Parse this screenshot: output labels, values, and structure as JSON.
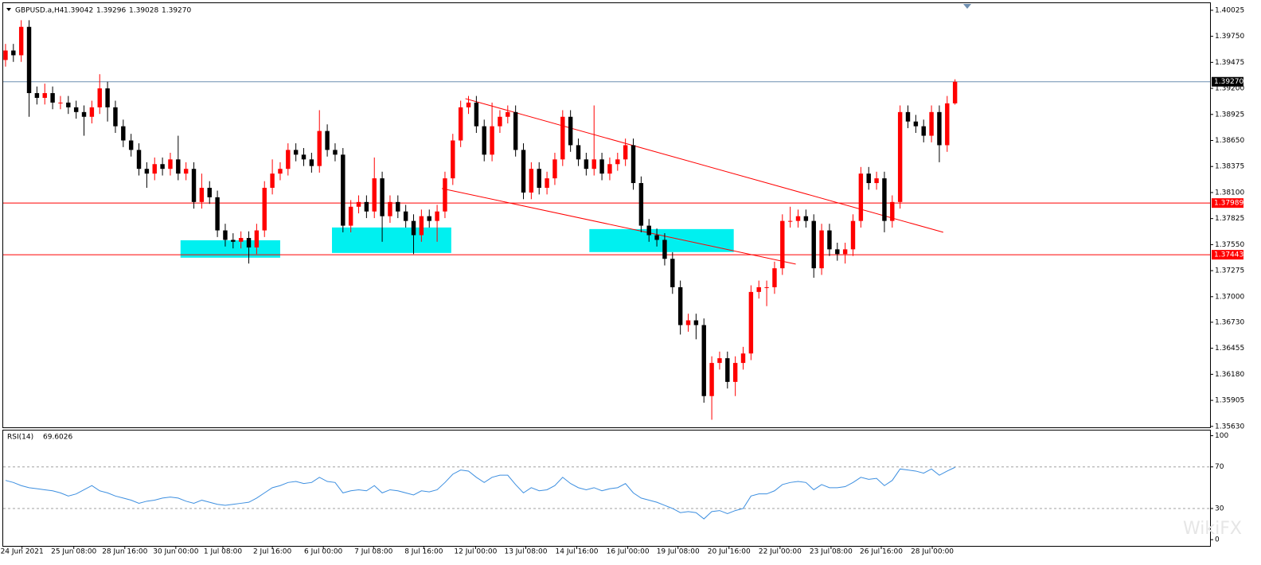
{
  "chart_data": {
    "type": "candlestick",
    "title": "GBPUSD.a,H4",
    "quote": [
      "1.39042",
      "1.39296",
      "1.39028",
      "1.39270"
    ],
    "bull_color": "#ff0000",
    "bear_color": "#000000",
    "xlim": [
      -0.3,
      153.5
    ],
    "xticks": [
      {
        "value": 2.1,
        "label": "24 Jun 2021"
      },
      {
        "value": 8.7,
        "label": "25 Jun 08:00"
      },
      {
        "value": 15.2,
        "label": "28 Jun 16:00"
      },
      {
        "value": 21.7,
        "label": "30 Jun 00:00"
      },
      {
        "value": 27.7,
        "label": "1 Jul 08:00"
      },
      {
        "value": 34.0,
        "label": "2 Jul 16:00"
      },
      {
        "value": 40.5,
        "label": "6 Jul 00:00"
      },
      {
        "value": 46.9,
        "label": "7 Jul 08:00"
      },
      {
        "value": 53.3,
        "label": "8 Jul 16:00"
      },
      {
        "value": 59.9,
        "label": "12 Jul 00:00"
      },
      {
        "value": 66.3,
        "label": "13 Jul 08:00"
      },
      {
        "value": 72.8,
        "label": "14 Jul 16:00"
      },
      {
        "value": 79.3,
        "label": "16 Jul 00:00"
      },
      {
        "value": 85.7,
        "label": "19 Jul 08:00"
      },
      {
        "value": 92.2,
        "label": "20 Jul 16:00"
      },
      {
        "value": 98.7,
        "label": "22 Jul 00:00"
      },
      {
        "value": 105.2,
        "label": "23 Jul 08:00"
      },
      {
        "value": 111.6,
        "label": "26 Jul 16:00"
      },
      {
        "value": 118.1,
        "label": "28 Jul 00:00"
      }
    ],
    "ylim": [
      1.3562,
      1.401
    ],
    "yticks": [
      1.40025,
      {
        "value": 1.3975,
        "label": "1.39750"
      },
      1.39475,
      {
        "value": 1.392,
        "label": "1.39200"
      },
      1.38925,
      {
        "value": 1.3865,
        "label": "1.38650"
      },
      1.38375,
      {
        "value": 1.381,
        "label": "1.38100"
      },
      1.37825,
      {
        "value": 1.3755,
        "label": "1.37550"
      },
      1.37275,
      {
        "value": 1.37,
        "label": "1.37000"
      },
      {
        "value": 1.3673,
        "label": "1.36730"
      },
      1.36455,
      {
        "value": 1.3618,
        "label": "1.36180"
      },
      1.35905,
      {
        "value": 1.3563,
        "label": "1.35630"
      }
    ],
    "open": [
      1.395,
      1.396,
      1.3955,
      1.3985,
      1.3915,
      1.391,
      1.3915,
      1.3905,
      1.3905,
      1.39,
      1.3895,
      1.389,
      1.39,
      1.392,
      1.39,
      1.388,
      1.3865,
      1.3855,
      1.3835,
      1.383,
      1.384,
      1.3835,
      1.3845,
      1.383,
      1.3835,
      1.38,
      1.3815,
      1.3805,
      1.377,
      1.376,
      1.3758,
      1.3762,
      1.3752,
      1.377,
      1.3815,
      1.383,
      1.3835,
      1.3855,
      1.385,
      1.3845,
      1.3838,
      1.3875,
      1.3855,
      1.385,
      1.3775,
      1.3795,
      1.38,
      1.379,
      1.3825,
      1.3785,
      1.38,
      1.379,
      1.378,
      1.3765,
      1.3785,
      1.378,
      1.379,
      1.3825,
      1.3865,
      1.39,
      1.3905,
      1.388,
      1.385,
      1.388,
      1.389,
      1.3895,
      1.3855,
      1.381,
      1.3835,
      1.3815,
      1.3825,
      1.3845,
      1.389,
      1.386,
      1.3845,
      1.3835,
      1.3845,
      1.383,
      1.384,
      1.3845,
      1.386,
      1.382,
      1.3775,
      1.3765,
      1.376,
      1.374,
      1.371,
      1.367,
      1.3675,
      1.367,
      1.3595,
      1.363,
      1.3635,
      1.361,
      1.363,
      1.364,
      1.3705,
      1.371,
      1.371,
      1.373,
      1.378,
      1.378,
      1.3785,
      1.378,
      1.373,
      1.377,
      1.375,
      1.3745,
      1.375,
      1.378,
      1.383,
      1.382,
      1.3825,
      1.378,
      1.38,
      1.3895,
      1.3885,
      1.388,
      1.387,
      1.3895,
      1.386,
      1.39042
    ],
    "high": [
      1.3967,
      1.3967,
      1.3992,
      1.3992,
      1.3922,
      1.3925,
      1.3922,
      1.3912,
      1.3912,
      1.3907,
      1.3902,
      1.3907,
      1.3935,
      1.3927,
      1.3907,
      1.3887,
      1.3872,
      1.3862,
      1.3842,
      1.3847,
      1.3847,
      1.3852,
      1.387,
      1.3842,
      1.3842,
      1.383,
      1.3822,
      1.3812,
      1.3777,
      1.3767,
      1.3769,
      1.3769,
      1.3777,
      1.3822,
      1.3845,
      1.3842,
      1.3862,
      1.3862,
      1.3857,
      1.3852,
      1.3897,
      1.3882,
      1.3862,
      1.3857,
      1.3802,
      1.3807,
      1.3807,
      1.3847,
      1.3832,
      1.3807,
      1.3807,
      1.3797,
      1.3787,
      1.3792,
      1.3792,
      1.3797,
      1.3832,
      1.3872,
      1.3907,
      1.3912,
      1.3912,
      1.3887,
      1.3905,
      1.3897,
      1.3902,
      1.3902,
      1.3862,
      1.3842,
      1.3842,
      1.3832,
      1.3852,
      1.3897,
      1.3897,
      1.3867,
      1.3852,
      1.3902,
      1.3852,
      1.3847,
      1.3852,
      1.3867,
      1.3867,
      1.3827,
      1.3782,
      1.3772,
      1.3767,
      1.3747,
      1.3717,
      1.3682,
      1.3682,
      1.3677,
      1.3637,
      1.3642,
      1.3642,
      1.3637,
      1.3647,
      1.3712,
      1.3717,
      1.3717,
      1.3737,
      1.3787,
      1.3795,
      1.3792,
      1.3792,
      1.3787,
      1.3777,
      1.3777,
      1.3757,
      1.3757,
      1.3787,
      1.3837,
      1.3837,
      1.3832,
      1.3832,
      1.3807,
      1.3902,
      1.3902,
      1.3892,
      1.3887,
      1.3902,
      1.3902,
      1.3912,
      1.39296
    ],
    "low": [
      1.3943,
      1.3948,
      1.3948,
      1.389,
      1.3903,
      1.3903,
      1.3898,
      1.3898,
      1.3893,
      1.3888,
      1.387,
      1.3883,
      1.3893,
      1.3885,
      1.3873,
      1.3858,
      1.3848,
      1.3828,
      1.3815,
      1.3823,
      1.3828,
      1.3828,
      1.3823,
      1.3823,
      1.3793,
      1.3793,
      1.3798,
      1.3763,
      1.3753,
      1.3751,
      1.3751,
      1.3735,
      1.3745,
      1.3763,
      1.3808,
      1.3823,
      1.3828,
      1.3843,
      1.3838,
      1.3831,
      1.3831,
      1.3848,
      1.3843,
      1.3768,
      1.3768,
      1.3788,
      1.3783,
      1.3783,
      1.3758,
      1.3778,
      1.3783,
      1.3773,
      1.3745,
      1.3758,
      1.3773,
      1.3758,
      1.3783,
      1.3818,
      1.3858,
      1.3893,
      1.3873,
      1.3843,
      1.3843,
      1.3873,
      1.3883,
      1.3848,
      1.3803,
      1.3803,
      1.3808,
      1.3808,
      1.3818,
      1.3838,
      1.3853,
      1.3838,
      1.3828,
      1.3828,
      1.3823,
      1.3823,
      1.3833,
      1.3838,
      1.3813,
      1.3768,
      1.3758,
      1.3753,
      1.3733,
      1.3703,
      1.366,
      1.3663,
      1.3655,
      1.3588,
      1.357,
      1.3623,
      1.3603,
      1.3595,
      1.3623,
      1.3633,
      1.3698,
      1.369,
      1.3703,
      1.3723,
      1.3773,
      1.3773,
      1.3773,
      1.372,
      1.3723,
      1.3743,
      1.3738,
      1.3735,
      1.3743,
      1.3773,
      1.3813,
      1.3813,
      1.3768,
      1.3773,
      1.3793,
      1.3878,
      1.3873,
      1.3863,
      1.3863,
      1.3842,
      1.3853,
      1.39028
    ],
    "close": [
      1.396,
      1.3955,
      1.3985,
      1.3915,
      1.391,
      1.3915,
      1.3905,
      1.3905,
      1.39,
      1.3895,
      1.389,
      1.39,
      1.392,
      1.39,
      1.388,
      1.3865,
      1.3855,
      1.3835,
      1.383,
      1.384,
      1.3835,
      1.3845,
      1.383,
      1.3835,
      1.38,
      1.3815,
      1.3805,
      1.377,
      1.376,
      1.3758,
      1.3762,
      1.3752,
      1.377,
      1.3815,
      1.383,
      1.3835,
      1.3855,
      1.385,
      1.3845,
      1.3838,
      1.3875,
      1.3855,
      1.385,
      1.3775,
      1.3795,
      1.38,
      1.379,
      1.3825,
      1.3785,
      1.38,
      1.379,
      1.378,
      1.3765,
      1.3785,
      1.378,
      1.379,
      1.3825,
      1.3865,
      1.39,
      1.3905,
      1.388,
      1.385,
      1.388,
      1.389,
      1.3895,
      1.3855,
      1.381,
      1.3835,
      1.3815,
      1.3825,
      1.3845,
      1.389,
      1.386,
      1.3845,
      1.3835,
      1.3845,
      1.383,
      1.384,
      1.3845,
      1.386,
      1.382,
      1.3775,
      1.3765,
      1.376,
      1.374,
      1.371,
      1.367,
      1.3675,
      1.367,
      1.3595,
      1.363,
      1.3635,
      1.361,
      1.363,
      1.364,
      1.3705,
      1.371,
      1.371,
      1.373,
      1.378,
      1.378,
      1.3785,
      1.378,
      1.373,
      1.377,
      1.375,
      1.3745,
      1.375,
      1.378,
      1.383,
      1.382,
      1.3825,
      1.378,
      1.38,
      1.3895,
      1.3885,
      1.388,
      1.387,
      1.3895,
      1.386,
      1.39042,
      1.3927
    ],
    "hlines": [
      {
        "value": 1.3927,
        "label": "1.39270",
        "color": "#6f8fb0",
        "tag_color": "#000000"
      },
      {
        "value": 1.37989,
        "label": "1.37989",
        "color": "#ff0000",
        "tag_color": "#ff0000"
      },
      {
        "value": 1.37443,
        "label": "1.37443",
        "color": "#ff0000",
        "tag_color": "#ff0000"
      }
    ],
    "trendlines": [
      {
        "x": [
          58.6,
          119.5
        ],
        "y": [
          1.39092,
          1.3768
        ],
        "color": "#ff0000"
      },
      {
        "x": [
          55.6,
          100.7
        ],
        "y": [
          1.38143,
          1.37344
        ],
        "color": "#ff0000"
      }
    ],
    "zones": [
      {
        "x": [
          22.3,
          35.0
        ],
        "y": [
          1.37412,
          1.37596
        ],
        "color": "#00f0f0"
      },
      {
        "x": [
          41.6,
          56.8
        ],
        "y": [
          1.37462,
          1.37731
        ],
        "color": "#00f0f0"
      },
      {
        "x": [
          74.4,
          92.8
        ],
        "y": [
          1.37471,
          1.37714
        ],
        "color": "#00f0f0"
      }
    ],
    "rsi": {
      "name": "RSI(14)",
      "color": "#3d8fe0",
      "ylim": [
        -6,
        105
      ],
      "yticks": [
        100,
        70,
        30,
        0
      ],
      "levels": [
        70,
        30
      ],
      "values": [
        57,
        55,
        52,
        50,
        49,
        48,
        47,
        45,
        42,
        44,
        48,
        52,
        47,
        45,
        42,
        40,
        38,
        35,
        37,
        38,
        40,
        41,
        40,
        37,
        35,
        38,
        36,
        34,
        33,
        34,
        35,
        36,
        40,
        45,
        50,
        52,
        55,
        56,
        54,
        55,
        60,
        56,
        55,
        45,
        47,
        48,
        47,
        52,
        45,
        48,
        47,
        45,
        43,
        47,
        46,
        48,
        55,
        63,
        67,
        66,
        60,
        55,
        60,
        62,
        62,
        53,
        45,
        50,
        47,
        48,
        52,
        60,
        54,
        50,
        48,
        50,
        47,
        49,
        50,
        54,
        45,
        40,
        38,
        36,
        33,
        30,
        26,
        27,
        26,
        20,
        27,
        28,
        25,
        28,
        30,
        42,
        44,
        44,
        47,
        53,
        55,
        56,
        55,
        48,
        53,
        50,
        50,
        51,
        55,
        60,
        58,
        59,
        52,
        57,
        68,
        67,
        66,
        64,
        68,
        62,
        66,
        69.6026
      ]
    },
    "watermark": "WikiFX"
  }
}
